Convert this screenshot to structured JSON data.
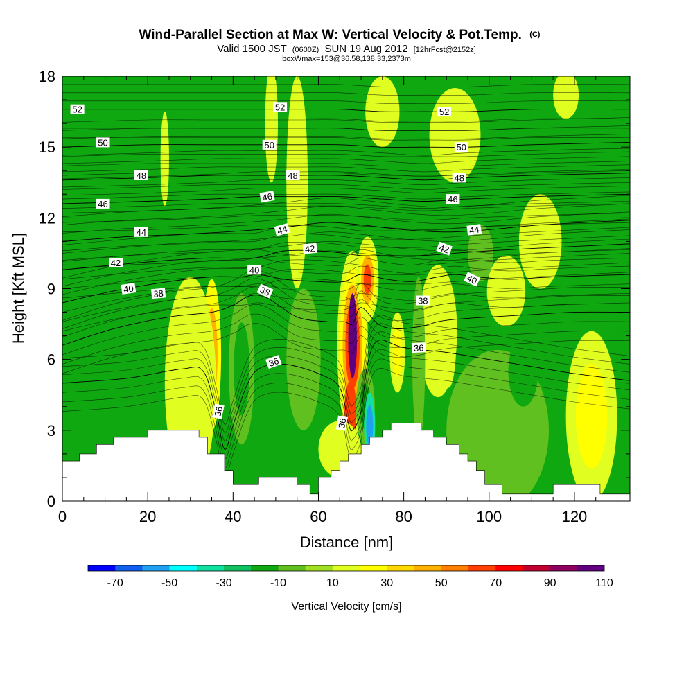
{
  "header": {
    "title": "Wind-Parallel Section at Max W: Vertical Velocity & Pot.Temp.",
    "title_mark": "(C)",
    "sub_valid": "Valid 1500 JST",
    "sub_utc": "(0600Z)",
    "sub_date": "SUN 19 Aug 2012",
    "sub_fcst": "[12hrFcst@2152z]",
    "sub_box": "boxWmax=153@36.58,138.33,2373m"
  },
  "chart_data": {
    "type": "heatmap",
    "title": "Wind-Parallel Section at Max W: Vertical Velocity & Pot.Temp.",
    "xlabel": "Distance [nm]",
    "ylabel": "Height [Kft MSL]",
    "xlim": [
      0,
      133
    ],
    "ylim": [
      0,
      18
    ],
    "x_ticks": [
      "0",
      "20",
      "40",
      "60",
      "80",
      "100",
      "120"
    ],
    "y_ticks": [
      "0",
      "3",
      "6",
      "9",
      "12",
      "15",
      "18"
    ],
    "background_color": "#10a810",
    "colorbar": {
      "label": "Vertical Velocity [cm/s]",
      "tick_labels": [
        "-70",
        "-50",
        "-30",
        "-10",
        "10",
        "30",
        "50",
        "70",
        "90",
        "110"
      ],
      "colors": [
        "#0000ff",
        "#1060f0",
        "#20a0f0",
        "#00ffff",
        "#10e0a0",
        "#10c060",
        "#10a810",
        "#60c020",
        "#a0e020",
        "#e0ff20",
        "#ffff00",
        "#ffd800",
        "#ffb000",
        "#ff8000",
        "#ff4000",
        "#ff0000",
        "#c00030",
        "#900060",
        "#600080"
      ]
    },
    "w_features": [
      {
        "x": 35.0,
        "y": 6.2,
        "rx": 2.2,
        "ry": 3.2,
        "levels": [
          20,
          40
        ]
      },
      {
        "x": 30.0,
        "y": 5.0,
        "rx": 6.0,
        "ry": 4.5,
        "levels": [
          10
        ]
      },
      {
        "x": 68.0,
        "y": 6.6,
        "rx": 3.6,
        "ry": 4.0,
        "levels": [
          10,
          20,
          40,
          60,
          80
        ]
      },
      {
        "x": 71.5,
        "y": 9.4,
        "rx": 2.6,
        "ry": 1.8,
        "levels": [
          10,
          20,
          40,
          60
        ]
      },
      {
        "x": 68.0,
        "y": 7.0,
        "rx": 1.0,
        "ry": 1.8,
        "levels": [
          100
        ]
      },
      {
        "x": 67.5,
        "y": 3.8,
        "rx": 1.4,
        "ry": 1.3,
        "levels": [
          60
        ]
      },
      {
        "x": 90.5,
        "y": 6.8,
        "rx": 1.8,
        "ry": 2.0,
        "levels": [
          10,
          20,
          40
        ]
      },
      {
        "x": 88.0,
        "y": 7.2,
        "rx": 4.5,
        "ry": 2.8,
        "levels": [
          10
        ]
      },
      {
        "x": 104.0,
        "y": 8.9,
        "rx": 4.5,
        "ry": 1.5,
        "levels": [
          10
        ]
      },
      {
        "x": 78.5,
        "y": 6.3,
        "rx": 1.8,
        "ry": 1.7,
        "levels": [
          10,
          20
        ]
      },
      {
        "x": 124.0,
        "y": 3.6,
        "rx": 6.0,
        "ry": 3.6,
        "levels": [
          10,
          20
        ]
      },
      {
        "x": 42.0,
        "y": 5.6,
        "rx": 3.0,
        "ry": 3.2,
        "levels": [
          -10,
          -20
        ]
      },
      {
        "x": 56.5,
        "y": 6.0,
        "rx": 4.0,
        "ry": 3.0,
        "levels": [
          -10
        ]
      },
      {
        "x": 71.0,
        "y": 4.0,
        "rx": 2.2,
        "ry": 1.6,
        "levels": [
          -10,
          -20
        ]
      },
      {
        "x": 72.0,
        "y": 3.2,
        "rx": 1.3,
        "ry": 1.4,
        "levels": [
          -40,
          -60
        ]
      },
      {
        "x": 83.5,
        "y": 6.0,
        "rx": 1.5,
        "ry": 3.5,
        "levels": [
          -10
        ]
      },
      {
        "x": 102.0,
        "y": 3.0,
        "rx": 12.0,
        "ry": 3.4,
        "levels": [
          -10
        ]
      },
      {
        "x": 108.0,
        "y": 5.5,
        "rx": 3.5,
        "ry": 1.5,
        "levels": [
          -20
        ]
      },
      {
        "x": 65.0,
        "y": 2.2,
        "rx": 5.0,
        "ry": 1.2,
        "levels": [
          10
        ]
      },
      {
        "x": 55.0,
        "y": 13.5,
        "rx": 2.5,
        "ry": 4.5,
        "levels": [
          10
        ]
      },
      {
        "x": 24.0,
        "y": 14.5,
        "rx": 1.0,
        "ry": 2.0,
        "levels": [
          10
        ]
      },
      {
        "x": 92.0,
        "y": 15.5,
        "rx": 6.0,
        "ry": 2.0,
        "levels": [
          10
        ]
      },
      {
        "x": 75.0,
        "y": 16.5,
        "rx": 4.0,
        "ry": 1.5,
        "levels": [
          10
        ]
      },
      {
        "x": 112.0,
        "y": 11.0,
        "rx": 5.0,
        "ry": 2.0,
        "levels": [
          10
        ]
      },
      {
        "x": 98.0,
        "y": 10.5,
        "rx": 3.0,
        "ry": 1.2,
        "levels": [
          -10
        ]
      },
      {
        "x": 49.0,
        "y": 16.0,
        "rx": 1.5,
        "ry": 2.5,
        "levels": [
          10
        ]
      },
      {
        "x": 118.0,
        "y": 17.2,
        "rx": 3.0,
        "ry": 1.0,
        "levels": [
          10
        ]
      }
    ],
    "terrain": [
      [
        0,
        1.7
      ],
      [
        4,
        1.7
      ],
      [
        4,
        2.0
      ],
      [
        8,
        2.0
      ],
      [
        8,
        2.4
      ],
      [
        12,
        2.4
      ],
      [
        12,
        2.7
      ],
      [
        20,
        2.7
      ],
      [
        20,
        3.0
      ],
      [
        32,
        3.0
      ],
      [
        32,
        2.7
      ],
      [
        34,
        2.7
      ],
      [
        34,
        2.0
      ],
      [
        38,
        2.0
      ],
      [
        38,
        1.3
      ],
      [
        40,
        1.3
      ],
      [
        40,
        0.7
      ],
      [
        46,
        0.7
      ],
      [
        46,
        1.0
      ],
      [
        55,
        1.0
      ],
      [
        55,
        0.7
      ],
      [
        58,
        0.7
      ],
      [
        58,
        0.3
      ],
      [
        60,
        0.3
      ],
      [
        60,
        1.0
      ],
      [
        63,
        1.0
      ],
      [
        63,
        1.3
      ],
      [
        65,
        1.3
      ],
      [
        65,
        1.7
      ],
      [
        67,
        1.7
      ],
      [
        67,
        2.0
      ],
      [
        70,
        2.0
      ],
      [
        70,
        2.4
      ],
      [
        72,
        2.4
      ],
      [
        72,
        2.7
      ],
      [
        75,
        2.7
      ],
      [
        75,
        3.0
      ],
      [
        77,
        3.0
      ],
      [
        77,
        3.3
      ],
      [
        84,
        3.3
      ],
      [
        84,
        3.0
      ],
      [
        87,
        3.0
      ],
      [
        87,
        2.7
      ],
      [
        90,
        2.7
      ],
      [
        90,
        2.4
      ],
      [
        93,
        2.4
      ],
      [
        93,
        2.0
      ],
      [
        95,
        2.0
      ],
      [
        95,
        1.7
      ],
      [
        97,
        1.7
      ],
      [
        97,
        1.3
      ],
      [
        99,
        1.3
      ],
      [
        99,
        0.7
      ],
      [
        103,
        0.7
      ],
      [
        103,
        0.3
      ],
      [
        115,
        0.3
      ],
      [
        115,
        0.7
      ],
      [
        126,
        0.7
      ],
      [
        126,
        0.3
      ],
      [
        133,
        0.3
      ]
    ],
    "theta_lines": [
      {
        "level": 36,
        "pts": [
          [
            0,
            5.0
          ],
          [
            15,
            5.2
          ],
          [
            28,
            5.6
          ],
          [
            33,
            5.5
          ],
          [
            36,
            3.8
          ],
          [
            38,
            2.2
          ],
          [
            40,
            3.2
          ],
          [
            43,
            4.8
          ],
          [
            46,
            5.6
          ],
          [
            52,
            5.8
          ],
          [
            60,
            5.4
          ],
          [
            65,
            4.8
          ],
          [
            67,
            3.3
          ],
          [
            68,
            3.0
          ],
          [
            70,
            3.8
          ],
          [
            71.5,
            5.8
          ],
          [
            74,
            6.8
          ],
          [
            80,
            6.5
          ],
          [
            90,
            6.3
          ],
          [
            100,
            6.0
          ],
          [
            110,
            5.7
          ],
          [
            120,
            5.4
          ],
          [
            133,
            5.1
          ]
        ]
      },
      {
        "level": 38,
        "pts": [
          [
            0,
            6.6
          ],
          [
            12,
            7.3
          ],
          [
            25,
            7.8
          ],
          [
            35,
            8.0
          ],
          [
            40,
            8.3
          ],
          [
            44,
            8.7
          ],
          [
            48,
            8.6
          ],
          [
            55,
            7.8
          ],
          [
            62,
            7.6
          ],
          [
            66,
            7.6
          ],
          [
            68,
            7.5
          ],
          [
            70,
            8.2
          ],
          [
            74,
            7.5
          ],
          [
            78,
            7.3
          ],
          [
            84,
            7.4
          ],
          [
            88,
            7.6
          ],
          [
            92,
            7.7
          ],
          [
            100,
            7.8
          ],
          [
            110,
            7.9
          ],
          [
            120,
            8.0
          ],
          [
            133,
            8.0
          ]
        ]
      },
      {
        "level": 40,
        "pts": [
          [
            0,
            8.4
          ],
          [
            12,
            8.9
          ],
          [
            25,
            9.3
          ],
          [
            35,
            9.5
          ],
          [
            42,
            9.5
          ],
          [
            46,
            9.6
          ],
          [
            52,
            9.4
          ],
          [
            60,
            9.3
          ],
          [
            66,
            9.3
          ],
          [
            70,
            9.6
          ],
          [
            76,
            9.4
          ],
          [
            82,
            9.3
          ],
          [
            88,
            9.5
          ],
          [
            92,
            9.6
          ],
          [
            97,
            9.5
          ],
          [
            105,
            9.4
          ],
          [
            115,
            9.5
          ],
          [
            133,
            9.6
          ]
        ]
      },
      {
        "level": 42,
        "pts": [
          [
            0,
            9.8
          ],
          [
            12,
            10.0
          ],
          [
            25,
            10.2
          ],
          [
            35,
            10.3
          ],
          [
            45,
            10.3
          ],
          [
            52,
            10.6
          ],
          [
            60,
            10.6
          ],
          [
            66,
            10.5
          ],
          [
            70,
            10.4
          ],
          [
            76,
            10.4
          ],
          [
            84,
            10.4
          ],
          [
            92,
            10.5
          ],
          [
            100,
            10.6
          ],
          [
            110,
            10.7
          ],
          [
            133,
            10.9
          ]
        ]
      },
      {
        "level": 44,
        "pts": [
          [
            0,
            11.0
          ],
          [
            15,
            11.2
          ],
          [
            28,
            11.3
          ],
          [
            38,
            11.4
          ],
          [
            46,
            11.5
          ],
          [
            52,
            11.6
          ],
          [
            62,
            11.8
          ],
          [
            70,
            11.7
          ],
          [
            80,
            11.5
          ],
          [
            90,
            11.4
          ],
          [
            100,
            11.5
          ],
          [
            112,
            11.7
          ],
          [
            133,
            11.9
          ]
        ]
      },
      {
        "level": 46,
        "pts": [
          [
            0,
            12.6
          ],
          [
            20,
            12.7
          ],
          [
            35,
            12.8
          ],
          [
            45,
            12.9
          ],
          [
            55,
            12.9
          ],
          [
            65,
            12.9
          ],
          [
            75,
            12.8
          ],
          [
            85,
            12.7
          ],
          [
            95,
            12.8
          ],
          [
            110,
            12.9
          ],
          [
            133,
            13.0
          ]
        ]
      },
      {
        "level": 48,
        "pts": [
          [
            0,
            13.6
          ],
          [
            20,
            13.7
          ],
          [
            35,
            13.8
          ],
          [
            45,
            13.8
          ],
          [
            55,
            13.8
          ],
          [
            65,
            13.8
          ],
          [
            75,
            13.7
          ],
          [
            85,
            13.6
          ],
          [
            95,
            13.7
          ],
          [
            110,
            13.8
          ],
          [
            133,
            13.9
          ]
        ]
      },
      {
        "level": 50,
        "pts": [
          [
            0,
            15.0
          ],
          [
            20,
            15.1
          ],
          [
            35,
            15.1
          ],
          [
            45,
            15.1
          ],
          [
            55,
            15.1
          ],
          [
            65,
            15.1
          ],
          [
            75,
            15.0
          ],
          [
            85,
            15.0
          ],
          [
            95,
            15.0
          ],
          [
            110,
            15.1
          ],
          [
            133,
            15.2
          ]
        ]
      },
      {
        "level": 52,
        "pts": [
          [
            0,
            16.6
          ],
          [
            20,
            16.6
          ],
          [
            35,
            16.6
          ],
          [
            45,
            16.6
          ],
          [
            55,
            16.6
          ],
          [
            65,
            16.6
          ],
          [
            75,
            16.5
          ],
          [
            85,
            16.5
          ],
          [
            95,
            16.5
          ],
          [
            110,
            16.6
          ],
          [
            133,
            16.6
          ]
        ]
      }
    ],
    "theta_fill_offsets": [
      -0.4,
      -0.8,
      -1.2,
      0.35,
      0.7,
      1.05
    ],
    "theta_labels": [
      {
        "text": "36",
        "x": 36.5,
        "y": 3.8,
        "angle": -78
      },
      {
        "text": "36",
        "x": 49.5,
        "y": 5.9,
        "angle": -20
      },
      {
        "text": "36",
        "x": 65.5,
        "y": 3.3,
        "angle": -80
      },
      {
        "text": "36",
        "x": 83.5,
        "y": 6.5,
        "angle": -3
      },
      {
        "text": "38",
        "x": 22.5,
        "y": 8.8,
        "angle": -5
      },
      {
        "text": "38",
        "x": 47.5,
        "y": 8.9,
        "angle": 25
      },
      {
        "text": "38",
        "x": 84.5,
        "y": 8.5,
        "angle": 0
      },
      {
        "text": "40",
        "x": 15.5,
        "y": 9.0,
        "angle": -8
      },
      {
        "text": "40",
        "x": 45.0,
        "y": 9.8,
        "angle": 0
      },
      {
        "text": "40",
        "x": 96.0,
        "y": 9.4,
        "angle": 25
      },
      {
        "text": "42",
        "x": 12.5,
        "y": 10.1,
        "angle": 0
      },
      {
        "text": "42",
        "x": 58.0,
        "y": 10.7,
        "angle": -5
      },
      {
        "text": "42",
        "x": 89.5,
        "y": 10.7,
        "angle": 20
      },
      {
        "text": "44",
        "x": 18.5,
        "y": 11.4,
        "angle": 0
      },
      {
        "text": "44",
        "x": 51.5,
        "y": 11.5,
        "angle": -15
      },
      {
        "text": "44",
        "x": 96.5,
        "y": 11.5,
        "angle": -8
      },
      {
        "text": "46",
        "x": 9.5,
        "y": 12.6,
        "angle": 0
      },
      {
        "text": "46",
        "x": 48.0,
        "y": 12.9,
        "angle": -10
      },
      {
        "text": "46",
        "x": 91.5,
        "y": 12.8,
        "angle": 0
      },
      {
        "text": "48",
        "x": 18.5,
        "y": 13.8,
        "angle": 0
      },
      {
        "text": "48",
        "x": 54.0,
        "y": 13.8,
        "angle": 0
      },
      {
        "text": "48",
        "x": 93.0,
        "y": 13.7,
        "angle": 0
      },
      {
        "text": "50",
        "x": 9.5,
        "y": 15.2,
        "angle": 0
      },
      {
        "text": "50",
        "x": 48.5,
        "y": 15.1,
        "angle": 0
      },
      {
        "text": "50",
        "x": 93.5,
        "y": 15.0,
        "angle": 0
      },
      {
        "text": "52",
        "x": 3.5,
        "y": 16.6,
        "angle": 0
      },
      {
        "text": "52",
        "x": 51.0,
        "y": 16.7,
        "angle": 0
      },
      {
        "text": "52",
        "x": 89.5,
        "y": 16.5,
        "angle": 0
      }
    ]
  }
}
